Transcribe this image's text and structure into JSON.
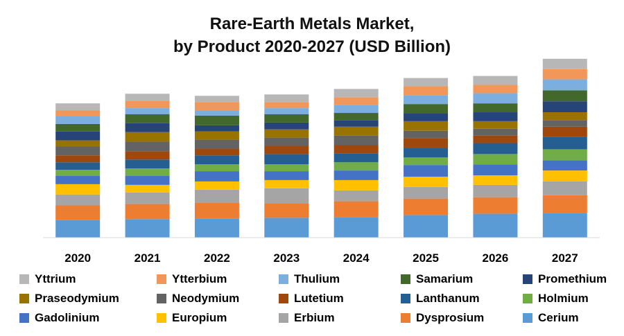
{
  "chart_data": {
    "type": "bar",
    "stacked": true,
    "title_lines": [
      "Rare-Earth Metals Market,",
      "by Product 2020-2027 (USD Billion)"
    ],
    "categories": [
      "2020",
      "2021",
      "2022",
      "2023",
      "2024",
      "2025",
      "2026",
      "2027"
    ],
    "series": [
      {
        "name": "Cerium",
        "color": "#5B9BD5",
        "values": [
          26,
          27,
          28,
          29,
          30,
          33,
          35,
          36
        ]
      },
      {
        "name": "Dysprosium",
        "color": "#ED7D31",
        "values": [
          21,
          22,
          23,
          21,
          23,
          24,
          24,
          26
        ]
      },
      {
        "name": "Erbium",
        "color": "#A5A5A5",
        "values": [
          16,
          17,
          19,
          22,
          16,
          17,
          18,
          20
        ]
      },
      {
        "name": "Europium",
        "color": "#FFC000",
        "values": [
          15,
          11,
          12,
          12,
          15,
          15,
          14,
          16
        ]
      },
      {
        "name": "Gadolinium",
        "color": "#4472C4",
        "values": [
          12,
          13,
          15,
          13,
          14,
          17,
          16,
          15
        ]
      },
      {
        "name": "Holmium",
        "color": "#70AD47",
        "values": [
          9,
          11,
          10,
          10,
          12,
          11,
          15,
          16
        ]
      },
      {
        "name": "Lanthanum",
        "color": "#255E91",
        "values": [
          11,
          13,
          13,
          15,
          13,
          14,
          16,
          18
        ]
      },
      {
        "name": "Lutetium",
        "color": "#9E480E",
        "values": [
          10,
          12,
          10,
          12,
          12,
          14,
          11,
          15
        ]
      },
      {
        "name": "Neodymium",
        "color": "#636363",
        "values": [
          13,
          14,
          13,
          12,
          14,
          11,
          10,
          9
        ]
      },
      {
        "name": "Praseodymium",
        "color": "#997300",
        "values": [
          9,
          14,
          12,
          12,
          13,
          14,
          11,
          12
        ]
      },
      {
        "name": "Promethium",
        "color": "#264478",
        "values": [
          13,
          13,
          9,
          10,
          9,
          11,
          13,
          16
        ]
      },
      {
        "name": "Samarium",
        "color": "#43682B",
        "values": [
          11,
          13,
          14,
          12,
          11,
          14,
          13,
          16
        ]
      },
      {
        "name": "Thulium",
        "color": "#7CAFDD",
        "values": [
          11,
          9,
          8,
          9,
          12,
          13,
          15,
          16
        ]
      },
      {
        "name": "Ytterbium",
        "color": "#F1975A",
        "values": [
          9,
          11,
          12,
          9,
          11,
          13,
          12,
          15
        ]
      },
      {
        "name": "Yttrium",
        "color": "#B7B7B7",
        "values": [
          10,
          10,
          9,
          11,
          12,
          12,
          13,
          15
        ]
      }
    ],
    "ylim": [
      0,
      270
    ],
    "grid": false,
    "legend": "bottom",
    "legend_order": [
      "Yttrium",
      "Ytterbium",
      "Thulium",
      "Samarium",
      "Promethium",
      "Praseodymium",
      "Neodymium",
      "Lutetium",
      "Lanthanum",
      "Holmium",
      "Gadolinium",
      "Europium",
      "Erbium",
      "Dysprosium",
      "Cerium"
    ]
  }
}
